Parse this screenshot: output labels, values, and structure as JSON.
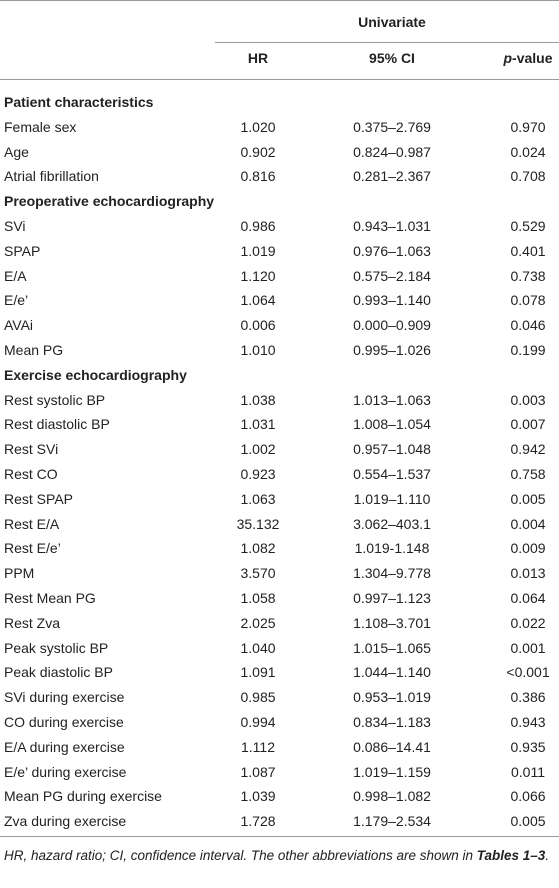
{
  "header": {
    "group": "Univariate",
    "columns": [
      "HR",
      "95% CI",
      "p-value"
    ]
  },
  "sections": [
    {
      "title": "Patient characteristics",
      "rows": [
        [
          "Female sex",
          "1.020",
          "0.375–2.769",
          "0.970"
        ],
        [
          "Age",
          "0.902",
          "0.824–0.987",
          "0.024"
        ],
        [
          "Atrial fibrillation",
          "0.816",
          "0.281–2.367",
          "0.708"
        ]
      ]
    },
    {
      "title": "Preoperative echocardiography",
      "rows": [
        [
          "SVi",
          "0.986",
          "0.943–1.031",
          "0.529"
        ],
        [
          "SPAP",
          "1.019",
          "0.976–1.063",
          "0.401"
        ],
        [
          "E/A",
          "1.120",
          "0.575–2.184",
          "0.738"
        ],
        [
          "E/e’",
          "1.064",
          "0.993–1.140",
          "0.078"
        ],
        [
          "AVAi",
          "0.006",
          "0.000–0.909",
          "0.046"
        ],
        [
          "Mean PG",
          "1.010",
          "0.995–1.026",
          "0.199"
        ]
      ]
    },
    {
      "title": "Exercise echocardiography",
      "rows": [
        [
          "Rest systolic BP",
          "1.038",
          "1.013–1.063",
          "0.003"
        ],
        [
          "Rest diastolic BP",
          "1.031",
          "1.008–1.054",
          "0.007"
        ],
        [
          "Rest SVi",
          "1.002",
          "0.957–1.048",
          "0.942"
        ],
        [
          "Rest CO",
          "0.923",
          "0.554–1.537",
          "0.758"
        ],
        [
          "Rest SPAP",
          "1.063",
          "1.019–1.110",
          "0.005"
        ],
        [
          "Rest E/A",
          "35.132",
          "3.062–403.1",
          "0.004"
        ],
        [
          "Rest E/e’",
          "1.082",
          "1.019-1.148",
          "0.009"
        ],
        [
          "PPM",
          "3.570",
          "1.304–9.778",
          "0.013"
        ],
        [
          "Rest Mean PG",
          "1.058",
          "0.997–1.123",
          "0.064"
        ],
        [
          "Rest Zva",
          "2.025",
          "1.108–3.701",
          "0.022"
        ],
        [
          "Peak systolic BP",
          "1.040",
          "1.015–1.065",
          "0.001"
        ],
        [
          "Peak diastolic BP",
          "1.091",
          "1.044–1.140",
          "<0.001"
        ],
        [
          "SVi during exercise",
          "0.985",
          "0.953–1.019",
          "0.386"
        ],
        [
          "CO during exercise",
          "0.994",
          "0.834–1.183",
          "0.943"
        ],
        [
          "E/A during exercise",
          "1.112",
          "0.086–14.41",
          "0.935"
        ],
        [
          "E/e’ during exercise",
          "1.087",
          "1.019–1.159",
          "0.011"
        ],
        [
          "Mean PG during exercise",
          "1.039",
          "0.998–1.082",
          "0.066"
        ],
        [
          "Zva during exercise",
          "1.728",
          "1.179–2.534",
          "0.005"
        ]
      ]
    }
  ],
  "footnote": {
    "text": "HR, hazard ratio; CI, confidence interval. The other abbreviations are shown in",
    "ref": "Tables 1–3",
    "end": "."
  }
}
